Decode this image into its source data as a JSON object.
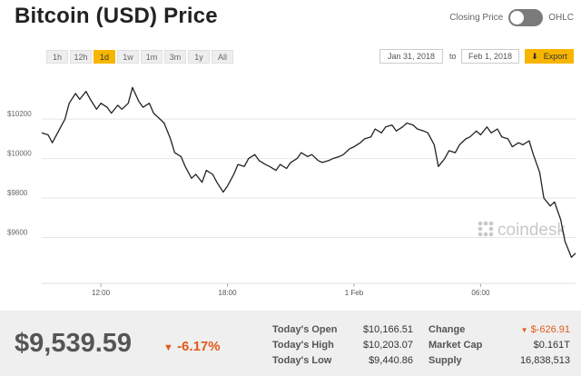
{
  "title": "Bitcoin (USD) Price",
  "toggle": {
    "left_label": "Closing Price",
    "right_label": "OHLC"
  },
  "ranges": [
    "1h",
    "12h",
    "1d",
    "1w",
    "1m",
    "3m",
    "1y",
    "All"
  ],
  "active_range": "1d",
  "date_from": "Jan 31, 2018",
  "date_to_label": "to",
  "date_to": "Feb 1, 2018",
  "export_label": "Export",
  "watermark": "coindesk",
  "colors": {
    "accent": "#f7b500",
    "negative": "#e05a1b",
    "line": "#222222"
  },
  "summary": {
    "price": "$9,539.59",
    "change_pct": "-6.17%"
  },
  "stats": {
    "open_label": "Today's Open",
    "open_value": "$10,166.51",
    "high_label": "Today's High",
    "high_value": "$10,203.07",
    "low_label": "Today's Low",
    "low_value": "$9,440.86",
    "change_label": "Change",
    "change_value": "$-626.91",
    "mcap_label": "Market Cap",
    "mcap_value": "$0.161T",
    "supply_label": "Supply",
    "supply_value": "16,838,513"
  },
  "chart_data": {
    "type": "line",
    "title": "Bitcoin (USD) Price",
    "xlabel": "",
    "ylabel": "",
    "x_ticks": [
      {
        "label": "12:00",
        "hour": 12
      },
      {
        "label": "18:00",
        "hour": 18
      },
      {
        "label": "1 Feb",
        "hour": 24
      },
      {
        "label": "06:00",
        "hour": 30
      }
    ],
    "y_ticks": [
      9600,
      9800,
      10000,
      10200
    ],
    "xlim": [
      9.2,
      34.5
    ],
    "ylim": [
      9400,
      10380
    ],
    "grid": true,
    "series": [
      {
        "points": [
          [
            9.2,
            10130
          ],
          [
            9.5,
            10120
          ],
          [
            9.7,
            10080
          ],
          [
            10.0,
            10140
          ],
          [
            10.3,
            10200
          ],
          [
            10.5,
            10280
          ],
          [
            10.8,
            10330
          ],
          [
            11.0,
            10300
          ],
          [
            11.3,
            10340
          ],
          [
            11.5,
            10300
          ],
          [
            11.8,
            10250
          ],
          [
            12.0,
            10280
          ],
          [
            12.3,
            10260
          ],
          [
            12.5,
            10230
          ],
          [
            12.8,
            10270
          ],
          [
            13.0,
            10250
          ],
          [
            13.3,
            10280
          ],
          [
            13.5,
            10360
          ],
          [
            13.8,
            10290
          ],
          [
            14.0,
            10260
          ],
          [
            14.3,
            10280
          ],
          [
            14.5,
            10230
          ],
          [
            14.8,
            10200
          ],
          [
            15.0,
            10180
          ],
          [
            15.3,
            10100
          ],
          [
            15.5,
            10030
          ],
          [
            15.8,
            10010
          ],
          [
            16.0,
            9960
          ],
          [
            16.3,
            9900
          ],
          [
            16.5,
            9920
          ],
          [
            16.8,
            9880
          ],
          [
            17.0,
            9940
          ],
          [
            17.3,
            9920
          ],
          [
            17.5,
            9880
          ],
          [
            17.8,
            9830
          ],
          [
            18.0,
            9860
          ],
          [
            18.3,
            9920
          ],
          [
            18.5,
            9970
          ],
          [
            18.8,
            9960
          ],
          [
            19.0,
            10000
          ],
          [
            19.3,
            10020
          ],
          [
            19.5,
            9990
          ],
          [
            19.8,
            9970
          ],
          [
            20.0,
            9960
          ],
          [
            20.3,
            9940
          ],
          [
            20.5,
            9970
          ],
          [
            20.8,
            9950
          ],
          [
            21.0,
            9980
          ],
          [
            21.3,
            10000
          ],
          [
            21.5,
            10030
          ],
          [
            21.8,
            10010
          ],
          [
            22.0,
            10020
          ],
          [
            22.3,
            9990
          ],
          [
            22.5,
            9980
          ],
          [
            22.8,
            9990
          ],
          [
            23.0,
            10000
          ],
          [
            23.3,
            10010
          ],
          [
            23.5,
            10020
          ],
          [
            23.8,
            10050
          ],
          [
            24.0,
            10060
          ],
          [
            24.3,
            10080
          ],
          [
            24.5,
            10100
          ],
          [
            24.8,
            10110
          ],
          [
            25.0,
            10150
          ],
          [
            25.3,
            10130
          ],
          [
            25.5,
            10160
          ],
          [
            25.8,
            10170
          ],
          [
            26.0,
            10140
          ],
          [
            26.3,
            10160
          ],
          [
            26.5,
            10180
          ],
          [
            26.8,
            10170
          ],
          [
            27.0,
            10150
          ],
          [
            27.3,
            10140
          ],
          [
            27.5,
            10130
          ],
          [
            27.8,
            10070
          ],
          [
            28.0,
            9960
          ],
          [
            28.3,
            10000
          ],
          [
            28.5,
            10040
          ],
          [
            28.8,
            10030
          ],
          [
            29.0,
            10070
          ],
          [
            29.3,
            10100
          ],
          [
            29.5,
            10110
          ],
          [
            29.8,
            10140
          ],
          [
            30.0,
            10120
          ],
          [
            30.3,
            10160
          ],
          [
            30.5,
            10130
          ],
          [
            30.8,
            10150
          ],
          [
            31.0,
            10110
          ],
          [
            31.3,
            10100
          ],
          [
            31.5,
            10060
          ],
          [
            31.8,
            10080
          ],
          [
            32.0,
            10070
          ],
          [
            32.3,
            10090
          ],
          [
            32.5,
            10020
          ],
          [
            32.8,
            9930
          ],
          [
            33.0,
            9800
          ],
          [
            33.3,
            9760
          ],
          [
            33.5,
            9780
          ],
          [
            33.8,
            9690
          ],
          [
            34.0,
            9580
          ],
          [
            34.3,
            9500
          ],
          [
            34.5,
            9520
          ]
        ]
      }
    ]
  }
}
